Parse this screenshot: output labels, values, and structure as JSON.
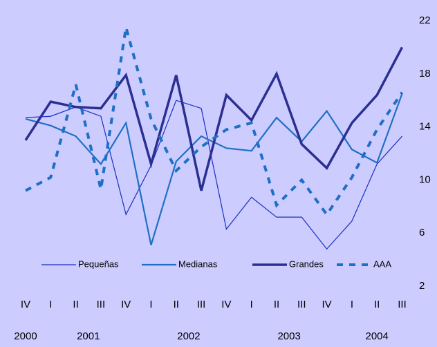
{
  "chart_data": {
    "type": "line",
    "categories": [
      "IV",
      "I",
      "II",
      "III",
      "IV",
      "I",
      "II",
      "III",
      "IV",
      "I",
      "II",
      "III",
      "IV",
      "I",
      "II",
      "III"
    ],
    "years": [
      "2000",
      "2001",
      "2002",
      "2003",
      "2004"
    ],
    "ylim": [
      2,
      22
    ],
    "yticks": [
      2,
      6,
      10,
      14,
      18,
      22
    ],
    "series": [
      {
        "name": "Pequeñas",
        "color": "#1a2fbf",
        "width": 1.2,
        "dashed": false,
        "values": [
          14.7,
          14.8,
          15.5,
          14.8,
          7.4,
          11.1,
          16.0,
          15.4,
          6.3,
          8.7,
          7.2,
          7.2,
          4.8,
          6.9,
          11.2,
          13.3
        ]
      },
      {
        "name": "Medianas",
        "color": "#1f6fc4",
        "width": 2.2,
        "dashed": false,
        "values": [
          14.6,
          14.1,
          13.3,
          11.2,
          14.3,
          5.1,
          11.4,
          13.3,
          12.4,
          12.2,
          14.7,
          12.9,
          15.2,
          12.3,
          11.3,
          16.5
        ]
      },
      {
        "name": "Grandes",
        "color": "#2b2f8f",
        "width": 3.5,
        "dashed": false,
        "values": [
          13.0,
          15.9,
          15.5,
          15.4,
          17.9,
          11.2,
          17.9,
          9.2,
          16.4,
          14.5,
          18.0,
          12.7,
          10.9,
          14.3,
          16.4,
          20.0
        ]
      },
      {
        "name": "AAA",
        "color": "#1f6fc4",
        "width": 4,
        "dashed": true,
        "values": [
          9.2,
          10.2,
          17.2,
          9.3,
          21.5,
          14.6,
          10.7,
          12.5,
          13.8,
          14.3,
          8.1,
          10.0,
          7.4,
          10.2,
          13.8,
          16.6
        ]
      }
    ]
  }
}
